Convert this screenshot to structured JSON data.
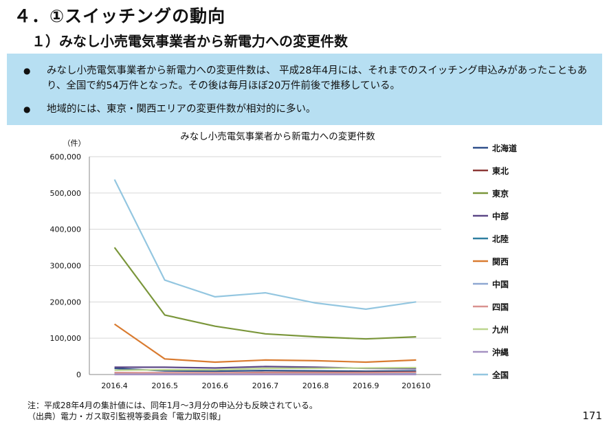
{
  "slide": {
    "title": "４．①スイッチングの動向",
    "subtitle": "１）みなし小売電気事業者から新電力への変更件数",
    "bullets": [
      "みなし小売電気事業者から新電力への変更件数は、 平成28年4月には、それまでのスイッチング申込みがあったこともあり、全国で約54万件となった。その後は毎月ほぼ20万件前後で推移している。",
      "地域的には、東京・関西エリアの変更件数が相対的に多い。"
    ],
    "bullet_symbol": "●",
    "note": "注：平成28年4月の集計値には、同年1月～3月分の申込分も反映されている。",
    "source": "（出典）電力・ガス取引監視等委員会「電力取引報」",
    "page_number": "171"
  },
  "chart_data": {
    "type": "line",
    "title": "みなし小売電気事業者から新電力への変更件数",
    "y_unit_label": "（件）",
    "categories": [
      "2016.4",
      "2016.5",
      "2016.6",
      "2016.7",
      "2016.8",
      "2016.9",
      "201610"
    ],
    "ylim": [
      0,
      600000
    ],
    "yticks": [
      0,
      100000,
      200000,
      300000,
      400000,
      500000,
      600000
    ],
    "ytick_labels": [
      "0",
      "100,000",
      "200,000",
      "300,000",
      "400,000",
      "500,000",
      "600,000"
    ],
    "grid": true,
    "legend_position": "right",
    "series": [
      {
        "name": "北海道",
        "color": "#2e4f8a",
        "values": [
          17000,
          10000,
          9000,
          11000,
          10000,
          9000,
          10000
        ]
      },
      {
        "name": "東北",
        "color": "#8c3836",
        "values": [
          5000,
          4000,
          4000,
          6000,
          6000,
          6000,
          7000
        ]
      },
      {
        "name": "東京",
        "color": "#7a963a",
        "values": [
          350000,
          164000,
          133000,
          112000,
          104000,
          98000,
          104000
        ]
      },
      {
        "name": "中部",
        "color": "#5b4786",
        "values": [
          20000,
          20000,
          18000,
          22000,
          20000,
          17000,
          16000
        ]
      },
      {
        "name": "北陸",
        "color": "#2e7fa0",
        "values": [
          1000,
          1000,
          1000,
          1000,
          1000,
          1000,
          1000
        ]
      },
      {
        "name": "関西",
        "color": "#d97b30",
        "values": [
          139000,
          43000,
          34000,
          40000,
          38000,
          34000,
          40000
        ]
      },
      {
        "name": "中国",
        "color": "#8ea7d1",
        "values": [
          3000,
          3000,
          3000,
          3000,
          3000,
          3000,
          4000
        ]
      },
      {
        "name": "四国",
        "color": "#d9928f",
        "values": [
          5000,
          5000,
          5000,
          5000,
          5000,
          5000,
          6000
        ]
      },
      {
        "name": "九州",
        "color": "#bcd68e",
        "values": [
          12000,
          13000,
          13000,
          17000,
          17000,
          18000,
          19000
        ]
      },
      {
        "name": "沖縄",
        "color": "#a591c2",
        "values": [
          0,
          0,
          0,
          0,
          0,
          0,
          0
        ]
      },
      {
        "name": "全国",
        "color": "#93c6e0",
        "values": [
          537000,
          260000,
          214000,
          225000,
          197000,
          180000,
          200000
        ]
      }
    ],
    "colors": {
      "axis": "#888888",
      "grid": "#d6d6d6",
      "box": "#b7dff2"
    }
  }
}
